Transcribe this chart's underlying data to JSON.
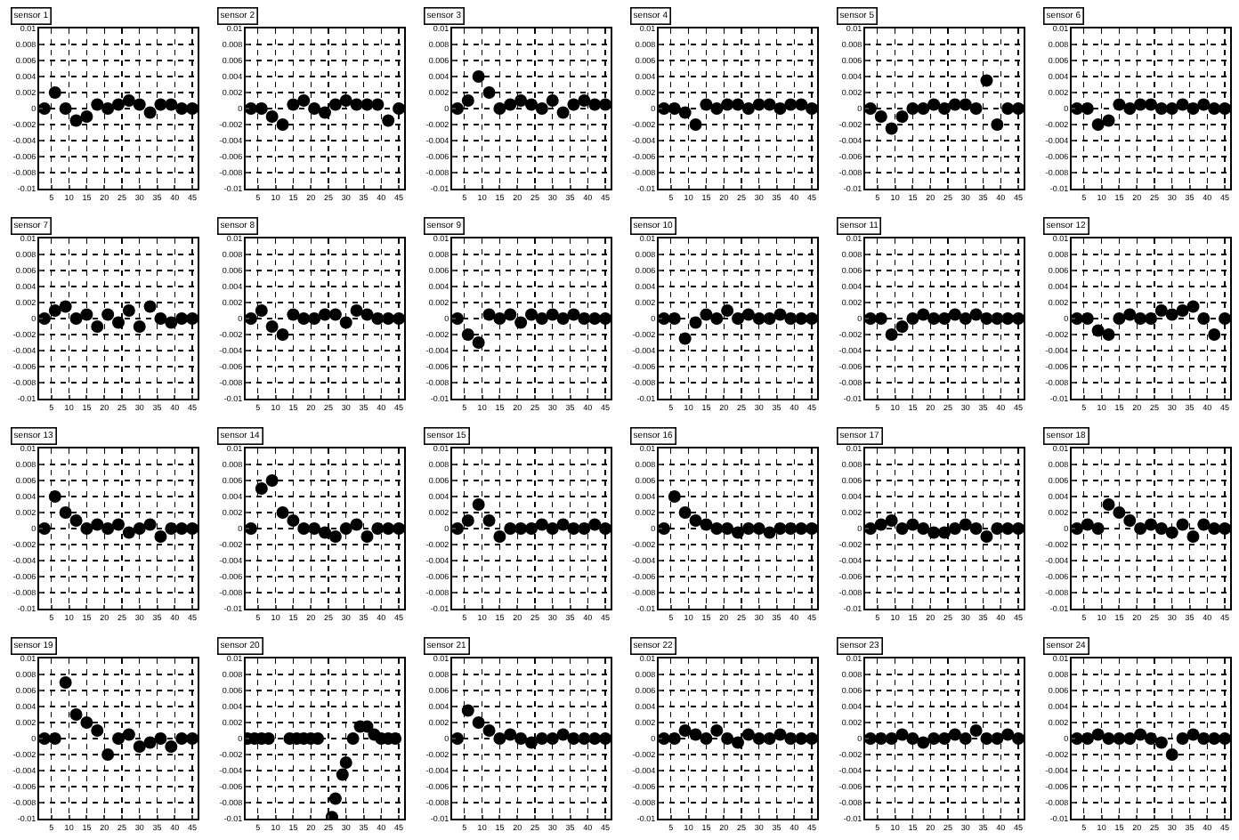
{
  "chart_data": [
    {
      "type": "scatter",
      "title": "sensor 1",
      "x": [
        3,
        6,
        9,
        12,
        15,
        18,
        21,
        24,
        27,
        30,
        33,
        36,
        39,
        42,
        45
      ],
      "series": [
        {
          "color": "#000000",
          "values": [
            0,
            0.002,
            0,
            -0.0015,
            -0.001,
            0.0005,
            0,
            0.0005,
            0.001,
            0.0005,
            -0.0005,
            0.0005,
            0.0005,
            0,
            0
          ]
        }
      ],
      "xlim": [
        1.5,
        46.5
      ],
      "xticks": [
        5,
        10,
        15,
        20,
        25,
        30,
        35,
        40,
        45
      ],
      "ylim": [
        -0.01,
        0.01
      ],
      "yticks": [
        -0.01,
        -0.008,
        -0.006,
        -0.004,
        -0.002,
        0,
        0.002,
        0.004,
        0.006,
        0.008,
        0.01
      ],
      "grid": true,
      "marker": "circle"
    },
    {
      "type": "scatter",
      "title": "sensor 2",
      "x": [
        3,
        6,
        9,
        12,
        15,
        18,
        21,
        24,
        27,
        30,
        33,
        36,
        39,
        42,
        45
      ],
      "series": [
        {
          "color": "#000000",
          "values": [
            0,
            0,
            -0.001,
            -0.002,
            0.0005,
            0.001,
            0,
            -0.0005,
            0.0005,
            0.001,
            0.0005,
            0.0005,
            0.0005,
            -0.0015,
            0
          ]
        }
      ],
      "xlim": [
        1.5,
        46.5
      ],
      "xticks": [
        5,
        10,
        15,
        20,
        25,
        30,
        35,
        40,
        45
      ],
      "ylim": [
        -0.01,
        0.01
      ],
      "yticks": [
        -0.01,
        -0.008,
        -0.006,
        -0.004,
        -0.002,
        0,
        0.002,
        0.004,
        0.006,
        0.008,
        0.01
      ],
      "grid": true,
      "marker": "circle"
    },
    {
      "type": "scatter",
      "title": "sensor 3",
      "x": [
        3,
        6,
        9,
        12,
        15,
        18,
        21,
        24,
        27,
        30,
        33,
        36,
        39,
        42,
        45
      ],
      "series": [
        {
          "color": "#000000",
          "values": [
            0,
            0.001,
            0.004,
            0.002,
            0,
            0.0005,
            0.001,
            0.0005,
            0,
            0.001,
            -0.0005,
            0.0005,
            0.001,
            0.0005,
            0.0005
          ]
        }
      ],
      "xlim": [
        1.5,
        46.5
      ],
      "xticks": [
        5,
        10,
        15,
        20,
        25,
        30,
        35,
        40,
        45
      ],
      "ylim": [
        -0.01,
        0.01
      ],
      "yticks": [
        -0.01,
        -0.008,
        -0.006,
        -0.004,
        -0.002,
        0,
        0.002,
        0.004,
        0.006,
        0.008,
        0.01
      ],
      "grid": true,
      "marker": "circle"
    },
    {
      "type": "scatter",
      "title": "sensor 4",
      "x": [
        3,
        6,
        9,
        12,
        15,
        18,
        21,
        24,
        27,
        30,
        33,
        36,
        39,
        42,
        45
      ],
      "series": [
        {
          "color": "#000000",
          "values": [
            0,
            0,
            -0.0005,
            -0.002,
            0.0005,
            0,
            0.0005,
            0.0005,
            0,
            0.0005,
            0.0005,
            0,
            0.0005,
            0.0005,
            0
          ]
        }
      ],
      "xlim": [
        1.5,
        46.5
      ],
      "xticks": [
        5,
        10,
        15,
        20,
        25,
        30,
        35,
        40,
        45
      ],
      "ylim": [
        -0.01,
        0.01
      ],
      "yticks": [
        -0.01,
        -0.008,
        -0.006,
        -0.004,
        -0.002,
        0,
        0.002,
        0.004,
        0.006,
        0.008,
        0.01
      ],
      "grid": true,
      "marker": "circle"
    },
    {
      "type": "scatter",
      "title": "sensor 5",
      "x": [
        3,
        6,
        9,
        12,
        15,
        18,
        21,
        24,
        27,
        30,
        33,
        36,
        39,
        42,
        45
      ],
      "series": [
        {
          "color": "#000000",
          "values": [
            0,
            -0.001,
            -0.0025,
            -0.001,
            0,
            0,
            0.0005,
            0,
            0.0005,
            0.0005,
            0,
            0.0035,
            -0.002,
            0,
            0
          ]
        }
      ],
      "xlim": [
        1.5,
        46.5
      ],
      "xticks": [
        5,
        10,
        15,
        20,
        25,
        30,
        35,
        40,
        45
      ],
      "ylim": [
        -0.01,
        0.01
      ],
      "yticks": [
        -0.01,
        -0.008,
        -0.006,
        -0.004,
        -0.002,
        0,
        0.002,
        0.004,
        0.006,
        0.008,
        0.01
      ],
      "grid": true,
      "marker": "circle"
    },
    {
      "type": "scatter",
      "title": "sensor 6",
      "x": [
        3,
        6,
        9,
        12,
        15,
        18,
        21,
        24,
        27,
        30,
        33,
        36,
        39,
        42,
        45
      ],
      "series": [
        {
          "color": "#000000",
          "values": [
            0,
            0,
            -0.002,
            -0.0015,
            0.0005,
            0,
            0.0005,
            0.0005,
            0,
            0,
            0.0005,
            0,
            0.0005,
            0,
            0
          ]
        }
      ],
      "xlim": [
        1.5,
        46.5
      ],
      "xticks": [
        5,
        10,
        15,
        20,
        25,
        30,
        35,
        40,
        45
      ],
      "ylim": [
        -0.01,
        0.01
      ],
      "yticks": [
        -0.01,
        -0.008,
        -0.006,
        -0.004,
        -0.002,
        0,
        0.002,
        0.004,
        0.006,
        0.008,
        0.01
      ],
      "grid": true,
      "marker": "circle"
    },
    {
      "type": "scatter",
      "title": "sensor 7",
      "x": [
        3,
        6,
        9,
        12,
        15,
        18,
        21,
        24,
        27,
        30,
        33,
        36,
        39,
        42,
        45
      ],
      "series": [
        {
          "color": "#000000",
          "values": [
            0,
            0.001,
            0.0015,
            0,
            0.0005,
            -0.001,
            0.0005,
            -0.0005,
            0.001,
            -0.001,
            0.0015,
            0,
            -0.0005,
            0,
            0
          ]
        }
      ],
      "xlim": [
        1.5,
        46.5
      ],
      "xticks": [
        5,
        10,
        15,
        20,
        25,
        30,
        35,
        40,
        45
      ],
      "ylim": [
        -0.01,
        0.01
      ],
      "yticks": [
        -0.01,
        -0.008,
        -0.006,
        -0.004,
        -0.002,
        0,
        0.002,
        0.004,
        0.006,
        0.008,
        0.01
      ],
      "grid": true,
      "marker": "circle"
    },
    {
      "type": "scatter",
      "title": "sensor 8",
      "x": [
        3,
        6,
        9,
        12,
        15,
        18,
        21,
        24,
        27,
        30,
        33,
        36,
        39,
        42,
        45
      ],
      "series": [
        {
          "color": "#000000",
          "values": [
            0,
            0.001,
            -0.001,
            -0.002,
            0.0005,
            0,
            0,
            0.0005,
            0.0005,
            -0.0005,
            0.001,
            0.0005,
            0,
            0,
            0
          ]
        }
      ],
      "xlim": [
        1.5,
        46.5
      ],
      "xticks": [
        5,
        10,
        15,
        20,
        25,
        30,
        35,
        40,
        45
      ],
      "ylim": [
        -0.01,
        0.01
      ],
      "yticks": [
        -0.01,
        -0.008,
        -0.006,
        -0.004,
        -0.002,
        0,
        0.002,
        0.004,
        0.006,
        0.008,
        0.01
      ],
      "grid": true,
      "marker": "circle"
    },
    {
      "type": "scatter",
      "title": "sensor 9",
      "x": [
        3,
        6,
        9,
        12,
        15,
        18,
        21,
        24,
        27,
        30,
        33,
        36,
        39,
        42,
        45
      ],
      "series": [
        {
          "color": "#000000",
          "values": [
            0,
            -0.002,
            -0.003,
            0.0005,
            0,
            0.0005,
            -0.0005,
            0.0005,
            0,
            0.0005,
            0,
            0.0005,
            0,
            0,
            0
          ]
        }
      ],
      "xlim": [
        1.5,
        46.5
      ],
      "xticks": [
        5,
        10,
        15,
        20,
        25,
        30,
        35,
        40,
        45
      ],
      "ylim": [
        -0.01,
        0.01
      ],
      "yticks": [
        -0.01,
        -0.008,
        -0.006,
        -0.004,
        -0.002,
        0,
        0.002,
        0.004,
        0.006,
        0.008,
        0.01
      ],
      "grid": true,
      "marker": "circle"
    },
    {
      "type": "scatter",
      "title": "sensor 10",
      "x": [
        3,
        6,
        9,
        12,
        15,
        18,
        21,
        24,
        27,
        30,
        33,
        36,
        39,
        42,
        45
      ],
      "series": [
        {
          "color": "#000000",
          "values": [
            0,
            0,
            -0.0025,
            -0.0005,
            0.0005,
            0,
            0.001,
            0,
            0.0005,
            0,
            0,
            0.0005,
            0,
            0,
            0
          ]
        }
      ],
      "xlim": [
        1.5,
        46.5
      ],
      "xticks": [
        5,
        10,
        15,
        20,
        25,
        30,
        35,
        40,
        45
      ],
      "ylim": [
        -0.01,
        0.01
      ],
      "yticks": [
        -0.01,
        -0.008,
        -0.006,
        -0.004,
        -0.002,
        0,
        0.002,
        0.004,
        0.006,
        0.008,
        0.01
      ],
      "grid": true,
      "marker": "circle"
    },
    {
      "type": "scatter",
      "title": "sensor 11",
      "x": [
        3,
        6,
        9,
        12,
        15,
        18,
        21,
        24,
        27,
        30,
        33,
        36,
        39,
        42,
        45
      ],
      "series": [
        {
          "color": "#000000",
          "values": [
            0,
            0,
            -0.002,
            -0.001,
            0,
            0.0005,
            0,
            0,
            0.0005,
            0,
            0.0005,
            0,
            0,
            0,
            0
          ]
        }
      ],
      "xlim": [
        1.5,
        46.5
      ],
      "xticks": [
        5,
        10,
        15,
        20,
        25,
        30,
        35,
        40,
        45
      ],
      "ylim": [
        -0.01,
        0.01
      ],
      "yticks": [
        -0.01,
        -0.008,
        -0.006,
        -0.004,
        -0.002,
        0,
        0.002,
        0.004,
        0.006,
        0.008,
        0.01
      ],
      "grid": true,
      "marker": "circle"
    },
    {
      "type": "scatter",
      "title": "sensor 12",
      "x": [
        3,
        6,
        9,
        12,
        15,
        18,
        21,
        24,
        27,
        30,
        33,
        36,
        39,
        42,
        45
      ],
      "series": [
        {
          "color": "#000000",
          "values": [
            0,
            0,
            -0.0015,
            -0.002,
            0,
            0.0005,
            0,
            0,
            0.001,
            0.0005,
            0.001,
            0.0015,
            0,
            -0.002,
            0
          ]
        }
      ],
      "xlim": [
        1.5,
        46.5
      ],
      "xticks": [
        5,
        10,
        15,
        20,
        25,
        30,
        35,
        40,
        45
      ],
      "ylim": [
        -0.01,
        0.01
      ],
      "yticks": [
        -0.01,
        -0.008,
        -0.006,
        -0.004,
        -0.002,
        0,
        0.002,
        0.004,
        0.006,
        0.008,
        0.01
      ],
      "grid": true,
      "marker": "circle"
    },
    {
      "type": "scatter",
      "title": "sensor 13",
      "x": [
        3,
        6,
        9,
        12,
        15,
        18,
        21,
        24,
        27,
        30,
        33,
        36,
        39,
        42,
        45
      ],
      "series": [
        {
          "color": "#000000",
          "values": [
            0,
            0.004,
            0.002,
            0.001,
            0,
            0.0005,
            0,
            0.0005,
            -0.0005,
            0,
            0.0005,
            -0.001,
            0,
            0,
            0
          ]
        }
      ],
      "xlim": [
        1.5,
        46.5
      ],
      "xticks": [
        5,
        10,
        15,
        20,
        25,
        30,
        35,
        40,
        45
      ],
      "ylim": [
        -0.01,
        0.01
      ],
      "yticks": [
        -0.01,
        -0.008,
        -0.006,
        -0.004,
        -0.002,
        0,
        0.002,
        0.004,
        0.006,
        0.008,
        0.01
      ],
      "grid": true,
      "marker": "circle"
    },
    {
      "type": "scatter",
      "title": "sensor 14",
      "x": [
        3,
        6,
        9,
        12,
        15,
        18,
        21,
        24,
        27,
        30,
        33,
        36,
        39,
        42,
        45
      ],
      "series": [
        {
          "color": "#000000",
          "values": [
            0,
            0.005,
            0.006,
            0.002,
            0.001,
            0,
            0,
            -0.0005,
            -0.001,
            0,
            0.0005,
            -0.001,
            0,
            0,
            0
          ]
        }
      ],
      "xlim": [
        1.5,
        46.5
      ],
      "xticks": [
        5,
        10,
        15,
        20,
        25,
        30,
        35,
        40,
        45
      ],
      "ylim": [
        -0.01,
        0.01
      ],
      "yticks": [
        -0.01,
        -0.008,
        -0.006,
        -0.004,
        -0.002,
        0,
        0.002,
        0.004,
        0.006,
        0.008,
        0.01
      ],
      "grid": true,
      "marker": "circle"
    },
    {
      "type": "scatter",
      "title": "sensor 15",
      "x": [
        3,
        6,
        9,
        12,
        15,
        18,
        21,
        24,
        27,
        30,
        33,
        36,
        39,
        42,
        45
      ],
      "series": [
        {
          "color": "#000000",
          "values": [
            0,
            0.001,
            0.003,
            0.001,
            -0.001,
            0,
            0,
            0,
            0.0005,
            0,
            0.0005,
            0,
            0,
            0.0005,
            0
          ]
        }
      ],
      "xlim": [
        1.5,
        46.5
      ],
      "xticks": [
        5,
        10,
        15,
        20,
        25,
        30,
        35,
        40,
        45
      ],
      "ylim": [
        -0.01,
        0.01
      ],
      "yticks": [
        -0.01,
        -0.008,
        -0.006,
        -0.004,
        -0.002,
        0,
        0.002,
        0.004,
        0.006,
        0.008,
        0.01
      ],
      "grid": true,
      "marker": "circle"
    },
    {
      "type": "scatter",
      "title": "sensor 16",
      "x": [
        3,
        6,
        9,
        12,
        15,
        18,
        21,
        24,
        27,
        30,
        33,
        36,
        39,
        42,
        45
      ],
      "series": [
        {
          "color": "#000000",
          "values": [
            0,
            0.004,
            0.002,
            0.001,
            0.0005,
            0,
            0,
            -0.0005,
            0,
            0,
            -0.0005,
            0,
            0,
            0,
            0
          ]
        }
      ],
      "xlim": [
        1.5,
        46.5
      ],
      "xticks": [
        5,
        10,
        15,
        20,
        25,
        30,
        35,
        40,
        45
      ],
      "ylim": [
        -0.01,
        0.01
      ],
      "yticks": [
        -0.01,
        -0.008,
        -0.006,
        -0.004,
        -0.002,
        0,
        0.002,
        0.004,
        0.006,
        0.008,
        0.01
      ],
      "grid": true,
      "marker": "circle"
    },
    {
      "type": "scatter",
      "title": "sensor 17",
      "x": [
        3,
        6,
        9,
        12,
        15,
        18,
        21,
        24,
        27,
        30,
        33,
        36,
        39,
        42,
        45
      ],
      "series": [
        {
          "color": "#000000",
          "values": [
            0,
            0.0005,
            0.001,
            0,
            0.0005,
            0,
            -0.0005,
            -0.0005,
            0,
            0.0005,
            0,
            -0.001,
            0,
            0,
            0
          ]
        }
      ],
      "xlim": [
        1.5,
        46.5
      ],
      "xticks": [
        5,
        10,
        15,
        20,
        25,
        30,
        35,
        40,
        45
      ],
      "ylim": [
        -0.01,
        0.01
      ],
      "yticks": [
        -0.01,
        -0.008,
        -0.006,
        -0.004,
        -0.002,
        0,
        0.002,
        0.004,
        0.006,
        0.008,
        0.01
      ],
      "grid": true,
      "marker": "circle"
    },
    {
      "type": "scatter",
      "title": "sensor 18",
      "x": [
        3,
        6,
        9,
        12,
        15,
        18,
        21,
        24,
        27,
        30,
        33,
        36,
        39,
        42,
        45
      ],
      "series": [
        {
          "color": "#000000",
          "values": [
            0,
            0.0005,
            0,
            0.003,
            0.002,
            0.001,
            0,
            0.0005,
            0,
            -0.0005,
            0.0005,
            -0.001,
            0.0005,
            0,
            0
          ]
        }
      ],
      "xlim": [
        1.5,
        46.5
      ],
      "xticks": [
        5,
        10,
        15,
        20,
        25,
        30,
        35,
        40,
        45
      ],
      "ylim": [
        -0.01,
        0.01
      ],
      "yticks": [
        -0.01,
        -0.008,
        -0.006,
        -0.004,
        -0.002,
        0,
        0.002,
        0.004,
        0.006,
        0.008,
        0.01
      ],
      "grid": true,
      "marker": "circle"
    },
    {
      "type": "scatter",
      "title": "sensor 19",
      "x": [
        3,
        6,
        9,
        12,
        15,
        18,
        21,
        24,
        27,
        30,
        33,
        36,
        39,
        42,
        45
      ],
      "series": [
        {
          "color": "#000000",
          "values": [
            0,
            0,
            0.007,
            0.003,
            0.002,
            0.001,
            -0.002,
            0,
            0.0005,
            -0.001,
            -0.0005,
            0,
            -0.001,
            0,
            0
          ]
        }
      ],
      "xlim": [
        1.5,
        46.5
      ],
      "xticks": [
        5,
        10,
        15,
        20,
        25,
        30,
        35,
        40,
        45
      ],
      "ylim": [
        -0.01,
        0.01
      ],
      "yticks": [
        -0.01,
        -0.008,
        -0.006,
        -0.004,
        -0.002,
        0,
        0.002,
        0.004,
        0.006,
        0.008,
        0.01
      ],
      "grid": true,
      "marker": "circle"
    },
    {
      "type": "scatter",
      "title": "sensor 20",
      "x": [
        2,
        4,
        6,
        8,
        14,
        16,
        18,
        20,
        22,
        26,
        27,
        29,
        30,
        32,
        34,
        36,
        38,
        40,
        42,
        44
      ],
      "series": [
        {
          "color": "#000000",
          "values": [
            0,
            0,
            0,
            0,
            0,
            0,
            0,
            0,
            0,
            -0.0098,
            -0.0075,
            -0.0045,
            -0.003,
            0,
            0.0015,
            0.0015,
            0.0005,
            0,
            0,
            0
          ]
        }
      ],
      "xlim": [
        1.5,
        46.5
      ],
      "xticks": [
        5,
        10,
        15,
        20,
        25,
        30,
        35,
        40,
        45
      ],
      "ylim": [
        -0.01,
        0.01
      ],
      "yticks": [
        -0.01,
        -0.008,
        -0.006,
        -0.004,
        -0.002,
        0,
        0.002,
        0.004,
        0.006,
        0.008,
        0.01
      ],
      "grid": true,
      "marker": "circle"
    },
    {
      "type": "scatter",
      "title": "sensor 21",
      "x": [
        3,
        6,
        9,
        12,
        15,
        18,
        21,
        24,
        27,
        30,
        33,
        36,
        39,
        42,
        45
      ],
      "series": [
        {
          "color": "#000000",
          "values": [
            0,
            0.0035,
            0.002,
            0.001,
            0,
            0.0005,
            0,
            -0.0005,
            0,
            0,
            0.0005,
            0,
            0,
            0,
            0
          ]
        }
      ],
      "xlim": [
        1.5,
        46.5
      ],
      "xticks": [
        5,
        10,
        15,
        20,
        25,
        30,
        35,
        40,
        45
      ],
      "ylim": [
        -0.01,
        0.01
      ],
      "yticks": [
        -0.01,
        -0.008,
        -0.006,
        -0.004,
        -0.002,
        0,
        0.002,
        0.004,
        0.006,
        0.008,
        0.01
      ],
      "grid": true,
      "marker": "circle"
    },
    {
      "type": "scatter",
      "title": "sensor 22",
      "x": [
        3,
        6,
        9,
        12,
        15,
        18,
        21,
        24,
        27,
        30,
        33,
        36,
        39,
        42,
        45
      ],
      "series": [
        {
          "color": "#000000",
          "values": [
            0,
            0,
            0.001,
            0.0005,
            0,
            0.001,
            0,
            -0.0005,
            0.0005,
            0,
            0,
            0.0005,
            0,
            0,
            0
          ]
        }
      ],
      "xlim": [
        1.5,
        46.5
      ],
      "xticks": [
        5,
        10,
        15,
        20,
        25,
        30,
        35,
        40,
        45
      ],
      "ylim": [
        -0.01,
        0.01
      ],
      "yticks": [
        -0.01,
        -0.008,
        -0.006,
        -0.004,
        -0.002,
        0,
        0.002,
        0.004,
        0.006,
        0.008,
        0.01
      ],
      "grid": true,
      "marker": "circle"
    },
    {
      "type": "scatter",
      "title": "sensor 23",
      "x": [
        3,
        6,
        9,
        12,
        15,
        18,
        21,
        24,
        27,
        30,
        33,
        36,
        39,
        42,
        45
      ],
      "series": [
        {
          "color": "#000000",
          "values": [
            0,
            0,
            0,
            0.0005,
            0,
            -0.0005,
            0,
            0,
            0.0005,
            0,
            0.001,
            0,
            0,
            0.0005,
            0
          ]
        }
      ],
      "xlim": [
        1.5,
        46.5
      ],
      "xticks": [
        5,
        10,
        15,
        20,
        25,
        30,
        35,
        40,
        45
      ],
      "ylim": [
        -0.01,
        0.01
      ],
      "yticks": [
        -0.01,
        -0.008,
        -0.006,
        -0.004,
        -0.002,
        0,
        0.002,
        0.004,
        0.006,
        0.008,
        0.01
      ],
      "grid": true,
      "marker": "circle"
    },
    {
      "type": "scatter",
      "title": "sensor 24",
      "x": [
        3,
        6,
        9,
        12,
        15,
        18,
        21,
        24,
        27,
        30,
        33,
        36,
        39,
        42,
        45
      ],
      "series": [
        {
          "color": "#000000",
          "values": [
            0,
            0,
            0.0005,
            0,
            0,
            0,
            0.0005,
            0,
            -0.0005,
            -0.002,
            0,
            0.0005,
            0,
            0,
            0
          ]
        }
      ],
      "xlim": [
        1.5,
        46.5
      ],
      "xticks": [
        5,
        10,
        15,
        20,
        25,
        30,
        35,
        40,
        45
      ],
      "ylim": [
        -0.01,
        0.01
      ],
      "yticks": [
        -0.01,
        -0.008,
        -0.006,
        -0.004,
        -0.002,
        0,
        0.002,
        0.004,
        0.006,
        0.008,
        0.01
      ],
      "grid": true,
      "marker": "circle"
    }
  ]
}
